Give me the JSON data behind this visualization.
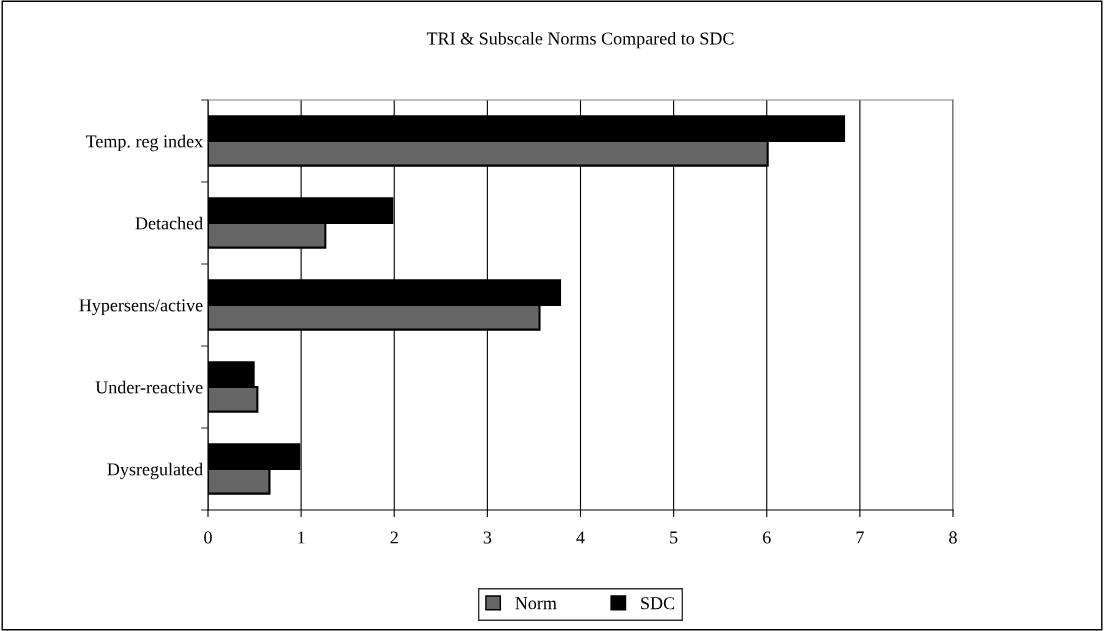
{
  "chart_data": {
    "type": "bar",
    "orientation": "horizontal",
    "title": "TRI & Subscale Norms Compared to SDC",
    "categories": [
      "Temp. reg index",
      "Detached",
      "Hypersens/active",
      "Under-reactive",
      "Dysregulated"
    ],
    "series": [
      {
        "name": "Norm",
        "color": "#666666",
        "values": [
          6.01,
          1.26,
          3.56,
          0.53,
          0.66
        ]
      },
      {
        "name": "SDC",
        "color": "#000000",
        "values": [
          6.83,
          1.98,
          3.78,
          0.49,
          0.98
        ]
      }
    ],
    "xlim": [
      0,
      8
    ],
    "xticks": [
      0,
      1,
      2,
      3,
      4,
      5,
      6,
      7,
      8
    ],
    "grid": "x",
    "legend": "bottom"
  }
}
